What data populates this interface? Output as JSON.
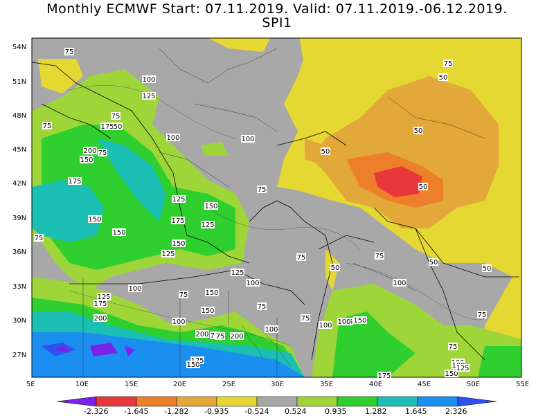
{
  "title_line1": "Monthly ECMWF Start: 07.11.2019. Valid: 07.11.2019.-06.12.2019.",
  "title_line2": "SPI1",
  "lat_labels": [
    "54N",
    "51N",
    "48N",
    "45N",
    "42N",
    "39N",
    "36N",
    "33N",
    "30N",
    "27N"
  ],
  "lon_labels": [
    "5E",
    "10E",
    "15E",
    "20E",
    "25E",
    "30E",
    "35E",
    "40E",
    "45E",
    "50E",
    "55E"
  ],
  "colorbar": {
    "ticks": [
      "-2.326",
      "-1.645",
      "-1.282",
      "-0.935",
      "-0.524",
      "0.524",
      "0.935",
      "1.282",
      "1.645",
      "2.326"
    ],
    "colors": [
      "#7b22e8",
      "#e8383c",
      "#ee7f2a",
      "#e2a83a",
      "#e6d832",
      "#a8a8a8",
      "#9ed63a",
      "#2ecf2e",
      "#1cbfb4",
      "#1a8ff0",
      "#3050f0"
    ]
  },
  "contour_labels": [
    {
      "t": "75"
    },
    {
      "t": "100"
    },
    {
      "t": "125"
    },
    {
      "t": "75"
    },
    {
      "t": "175"
    },
    {
      "t": "50"
    },
    {
      "t": "75"
    },
    {
      "t": "200"
    },
    {
      "t": "75"
    },
    {
      "t": "150"
    },
    {
      "t": "100"
    },
    {
      "t": "100"
    },
    {
      "t": "175"
    },
    {
      "t": "125"
    },
    {
      "t": "150"
    },
    {
      "t": "175"
    },
    {
      "t": "150"
    },
    {
      "t": "125"
    },
    {
      "t": "150"
    },
    {
      "t": "75"
    },
    {
      "t": "150"
    },
    {
      "t": "125"
    },
    {
      "t": "75"
    },
    {
      "t": "125"
    },
    {
      "t": "100"
    },
    {
      "t": "100"
    },
    {
      "t": "75"
    },
    {
      "t": "125"
    },
    {
      "t": "175"
    },
    {
      "t": "150"
    },
    {
      "t": "200"
    },
    {
      "t": "100"
    },
    {
      "t": "75"
    },
    {
      "t": "200"
    },
    {
      "t": "75"
    },
    {
      "t": "200"
    },
    {
      "t": "125"
    },
    {
      "t": "150"
    },
    {
      "t": "100"
    },
    {
      "t": "75"
    },
    {
      "t": "100"
    },
    {
      "t": "125"
    },
    {
      "t": "150"
    },
    {
      "t": "75"
    },
    {
      "t": "100"
    },
    {
      "t": "75"
    },
    {
      "t": "75"
    },
    {
      "t": "100"
    },
    {
      "t": "50"
    },
    {
      "t": "50"
    },
    {
      "t": "50"
    },
    {
      "t": "50"
    },
    {
      "t": "50"
    },
    {
      "t": "50"
    },
    {
      "t": "50"
    },
    {
      "t": "75"
    },
    {
      "t": "175"
    },
    {
      "t": "150"
    },
    {
      "t": "100"
    },
    {
      "t": "125"
    },
    {
      "t": "75"
    },
    {
      "t": "100"
    },
    {
      "t": "75"
    },
    {
      "t": "150"
    }
  ]
}
